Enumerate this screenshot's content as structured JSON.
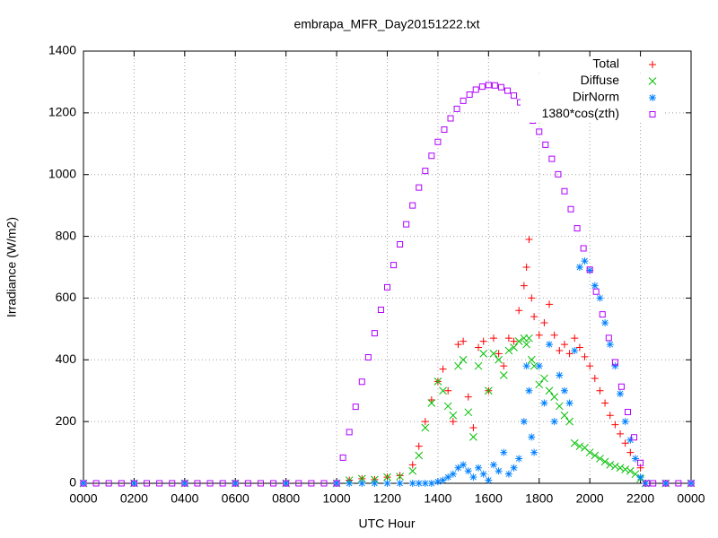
{
  "chart_data": {
    "type": "scatter",
    "title": "embrapa_MFR_Day20151222.txt",
    "x_label": "UTC Hour",
    "y_label": "Irradiance (W/m2)",
    "xlim": [
      0,
      24
    ],
    "ylim": [
      0,
      1400
    ],
    "xticks": [
      {
        "value": 0,
        "label": "0000"
      },
      {
        "value": 2,
        "label": "0200"
      },
      {
        "value": 4,
        "label": "0400"
      },
      {
        "value": 6,
        "label": "0600"
      },
      {
        "value": 8,
        "label": "0800"
      },
      {
        "value": 10,
        "label": "1000"
      },
      {
        "value": 12,
        "label": "1200"
      },
      {
        "value": 14,
        "label": "1400"
      },
      {
        "value": 16,
        "label": "1600"
      },
      {
        "value": 18,
        "label": "1800"
      },
      {
        "value": 20,
        "label": "2000"
      },
      {
        "value": 22,
        "label": "2200"
      },
      {
        "value": 24,
        "label": "0000"
      }
    ],
    "yticks": [
      0,
      200,
      400,
      600,
      800,
      1000,
      1200,
      1400
    ],
    "grid": true,
    "legend": "top-right",
    "series": [
      {
        "name": "Total",
        "color": "#ff0000",
        "marker": "plus",
        "x": [
          0,
          2,
          4,
          6,
          8,
          10,
          10.5,
          11,
          11.5,
          12,
          12.5,
          13,
          13.25,
          13.5,
          13.75,
          14,
          14.2,
          14.4,
          14.6,
          14.8,
          15,
          15.2,
          15.4,
          15.6,
          15.8,
          16,
          16.2,
          16.4,
          16.6,
          16.8,
          17,
          17.2,
          17.4,
          17.5,
          17.6,
          17.7,
          17.8,
          18,
          18.2,
          18.4,
          18.6,
          18.8,
          19,
          19.2,
          19.4,
          19.6,
          19.8,
          20,
          20.2,
          20.4,
          20.6,
          20.8,
          21,
          21.2,
          21.4,
          21.6,
          21.8,
          22,
          22.2,
          23,
          24
        ],
        "values": [
          0,
          0,
          0,
          0,
          0,
          0,
          10,
          15,
          12,
          20,
          25,
          60,
          120,
          200,
          270,
          330,
          370,
          300,
          200,
          450,
          460,
          280,
          180,
          440,
          460,
          300,
          470,
          420,
          380,
          470,
          460,
          560,
          640,
          700,
          790,
          600,
          540,
          480,
          520,
          580,
          480,
          430,
          450,
          420,
          470,
          440,
          410,
          380,
          340,
          300,
          260,
          220,
          190,
          160,
          130,
          100,
          80,
          50,
          0,
          0,
          0
        ]
      },
      {
        "name": "Diffuse",
        "color": "#00c000",
        "marker": "cross",
        "x": [
          0,
          2,
          4,
          6,
          8,
          10,
          10.5,
          11,
          11.5,
          12,
          12.5,
          13,
          13.25,
          13.5,
          13.75,
          14,
          14.2,
          14.4,
          14.6,
          14.8,
          15,
          15.2,
          15.4,
          15.6,
          15.8,
          16,
          16.2,
          16.4,
          16.6,
          16.8,
          17,
          17.2,
          17.4,
          17.5,
          17.6,
          17.7,
          17.8,
          18,
          18.2,
          18.4,
          18.6,
          18.8,
          19,
          19.2,
          19.4,
          19.6,
          19.8,
          20,
          20.2,
          20.4,
          20.6,
          20.8,
          21,
          21.2,
          21.4,
          21.6,
          21.8,
          22,
          22.2,
          23,
          24
        ],
        "values": [
          0,
          0,
          0,
          0,
          0,
          0,
          10,
          15,
          12,
          20,
          22,
          40,
          90,
          180,
          260,
          330,
          300,
          250,
          220,
          380,
          400,
          230,
          150,
          380,
          420,
          300,
          420,
          400,
          350,
          430,
          440,
          460,
          470,
          450,
          470,
          400,
          380,
          320,
          340,
          300,
          280,
          250,
          220,
          200,
          130,
          120,
          115,
          100,
          90,
          80,
          70,
          60,
          55,
          50,
          45,
          40,
          30,
          15,
          0,
          0,
          0
        ]
      },
      {
        "name": "DirNorm",
        "color": "#0080ff",
        "marker": "star",
        "x": [
          0,
          2,
          4,
          6,
          8,
          10,
          10.5,
          11,
          11.5,
          12,
          12.5,
          13,
          13.25,
          13.5,
          13.75,
          14,
          14.2,
          14.4,
          14.6,
          14.8,
          15,
          15.2,
          15.4,
          15.6,
          15.8,
          16,
          16.2,
          16.4,
          16.6,
          16.8,
          17,
          17.2,
          17.4,
          17.5,
          17.6,
          17.7,
          17.8,
          18,
          18.2,
          18.4,
          18.6,
          18.8,
          19,
          19.2,
          19.4,
          19.6,
          19.8,
          20,
          20.2,
          20.4,
          20.6,
          20.8,
          21,
          21.2,
          21.4,
          21.6,
          21.8,
          22,
          22.2,
          23,
          24
        ],
        "values": [
          0,
          0,
          0,
          0,
          0,
          0,
          0,
          0,
          0,
          0,
          0,
          0,
          0,
          0,
          0,
          5,
          10,
          20,
          30,
          50,
          60,
          40,
          20,
          50,
          30,
          10,
          60,
          40,
          100,
          30,
          50,
          80,
          200,
          380,
          300,
          150,
          100,
          380,
          260,
          450,
          200,
          350,
          300,
          260,
          430,
          700,
          720,
          690,
          640,
          600,
          520,
          450,
          380,
          290,
          200,
          140,
          80,
          20,
          0,
          0,
          0
        ]
      },
      {
        "name": "1380*cos(zth)",
        "color": "#b000ff",
        "marker": "square",
        "x": [
          0,
          0.5,
          1,
          1.5,
          2,
          2.5,
          3,
          3.5,
          4,
          4.5,
          5,
          5.5,
          6,
          6.5,
          7,
          7.5,
          8,
          8.5,
          9,
          9.5,
          10,
          10.25,
          10.5,
          10.75,
          11,
          11.25,
          11.5,
          11.75,
          12,
          12.25,
          12.5,
          12.75,
          13,
          13.25,
          13.5,
          13.75,
          14,
          14.25,
          14.5,
          14.75,
          15,
          15.25,
          15.5,
          15.75,
          16,
          16.25,
          16.5,
          16.75,
          17,
          17.25,
          17.5,
          17.75,
          18,
          18.25,
          18.5,
          18.75,
          19,
          19.25,
          19.5,
          19.75,
          20,
          20.25,
          20.5,
          20.75,
          21,
          21.25,
          21.5,
          21.75,
          22,
          22.25,
          22.5,
          23,
          23.5,
          24
        ],
        "values": [
          0,
          0,
          0,
          0,
          0,
          0,
          0,
          0,
          0,
          0,
          0,
          0,
          0,
          0,
          0,
          0,
          0,
          0,
          0,
          0,
          0,
          83,
          166,
          248,
          329,
          408,
          486,
          562,
          635,
          707,
          774,
          839,
          900,
          958,
          1012,
          1061,
          1106,
          1146,
          1182,
          1213,
          1239,
          1259,
          1275,
          1285,
          1290,
          1289,
          1283,
          1272,
          1256,
          1234,
          1207,
          1175,
          1139,
          1097,
          1051,
          1001,
          946,
          888,
          826,
          761,
          692,
          621,
          547,
          471,
          392,
          313,
          231,
          149,
          66,
          0,
          0,
          0,
          0,
          0
        ]
      }
    ]
  }
}
